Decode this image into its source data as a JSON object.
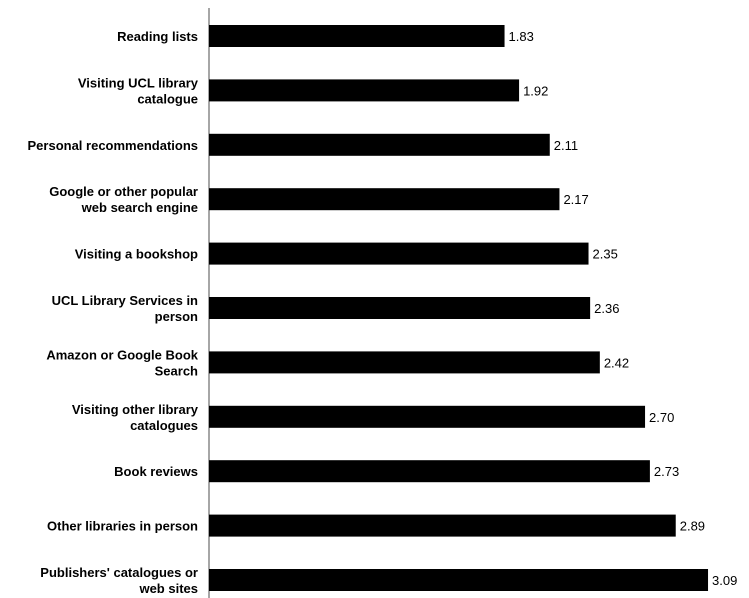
{
  "chart_data": {
    "type": "bar",
    "orientation": "horizontal",
    "categories": [
      "Reading lists",
      "Visiting UCL library catalogue",
      "Personal recommendations",
      "Google or other popular web search engine",
      "Visiting a bookshop",
      "UCL Library Services in person",
      "Amazon or Google Book Search",
      "Visiting other library catalogues",
      "Book reviews",
      "Other libraries in person",
      "Publishers' catalogues or web sites"
    ],
    "category_label_lines": [
      [
        "Reading lists"
      ],
      [
        "Visiting UCL library",
        "catalogue"
      ],
      [
        "Personal recommendations"
      ],
      [
        "Google or other popular",
        "web search engine"
      ],
      [
        "Visiting a bookshop"
      ],
      [
        "UCL Library Services in",
        "person"
      ],
      [
        "Amazon or Google Book",
        "Search"
      ],
      [
        "Visiting other library",
        "catalogues"
      ],
      [
        "Book reviews"
      ],
      [
        "Other libraries in person"
      ],
      [
        "Publishers' catalogues or",
        "web sites"
      ]
    ],
    "values": [
      1.83,
      1.92,
      2.11,
      2.17,
      2.35,
      2.36,
      2.42,
      2.7,
      2.73,
      2.89,
      3.09
    ],
    "value_labels": [
      "1.83",
      "1.92",
      "2.11",
      "2.17",
      "2.35",
      "2.36",
      "2.42",
      "2.70",
      "2.73",
      "2.89",
      "3.09"
    ],
    "bar_color": "#000000",
    "title": "",
    "xlabel": "",
    "ylabel": "",
    "grid": false,
    "legend": "none"
  }
}
